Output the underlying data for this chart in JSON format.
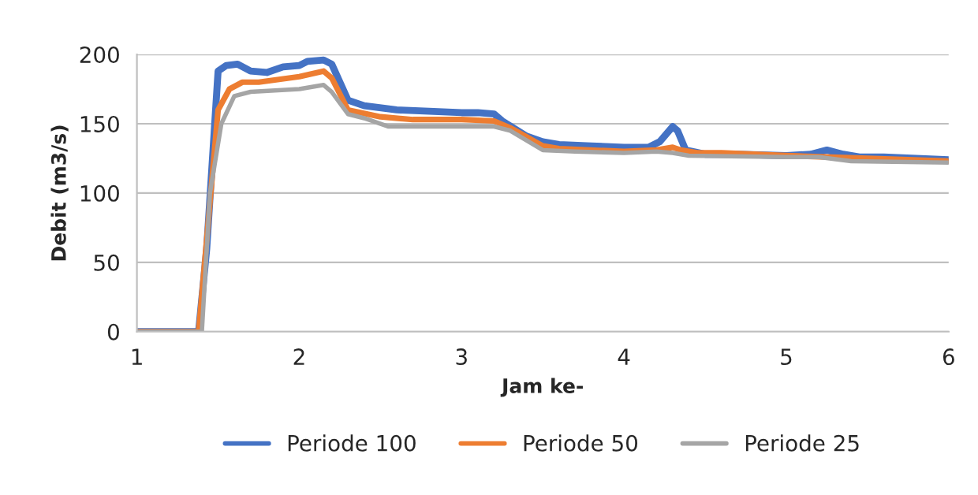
{
  "chart_data": {
    "type": "line",
    "xlabel": "Jam ke-",
    "ylabel": "Debit (m3/s)",
    "xlim": [
      1,
      6
    ],
    "xticks": [
      1,
      2,
      3,
      4,
      5,
      6
    ],
    "ylim": [
      0,
      200
    ],
    "yticks": [
      0,
      50,
      100,
      150,
      200
    ],
    "grid": "y",
    "legend": "bottom",
    "marker": "none",
    "line_style": "solid",
    "series": [
      {
        "name": "Periode 100",
        "color": "#4472c4",
        "x": [
          1,
          1.38,
          1.43,
          1.5,
          1.55,
          1.62,
          1.7,
          1.8,
          1.9,
          2,
          2.05,
          2.15,
          2.2,
          2.3,
          2.4,
          2.6,
          2.8,
          3,
          3.1,
          3.2,
          3.25,
          3.4,
          3.5,
          3.6,
          3.8,
          4,
          4.15,
          4.22,
          4.3,
          4.33,
          4.38,
          4.5,
          4.7,
          5,
          5.15,
          5.25,
          5.35,
          5.45,
          5.6,
          6
        ],
        "values": [
          0,
          0,
          60,
          188,
          192,
          193,
          188,
          187,
          191,
          192,
          195,
          196,
          193,
          167,
          163,
          160,
          159,
          158,
          158,
          157,
          152,
          141,
          137,
          135,
          134,
          133,
          133,
          137,
          148,
          145,
          131,
          128,
          128,
          127,
          128,
          131,
          128,
          126,
          126,
          124
        ]
      },
      {
        "name": "Periode 50",
        "color": "#ed7d31",
        "x": [
          1,
          1.38,
          1.44,
          1.5,
          1.57,
          1.65,
          1.75,
          2,
          2.15,
          2.2,
          2.3,
          2.5,
          2.7,
          3,
          3.2,
          3.3,
          3.5,
          3.6,
          4,
          4.2,
          4.3,
          4.35,
          4.45,
          4.6,
          5,
          5.5,
          6
        ],
        "values": [
          0,
          0,
          80,
          160,
          175,
          180,
          180,
          184,
          188,
          183,
          160,
          155,
          153,
          153,
          152,
          147,
          134,
          132,
          130,
          131,
          133,
          131,
          129,
          129,
          127,
          125,
          123
        ]
      },
      {
        "name": "Periode 25",
        "color": "#a5a5a5",
        "x": [
          1,
          1.4,
          1.45,
          1.52,
          1.6,
          1.7,
          2,
          2.15,
          2.2,
          2.3,
          2.4,
          2.55,
          3,
          3.2,
          3.3,
          3.5,
          3.7,
          4,
          4.2,
          4.3,
          4.4,
          5,
          5.2,
          5.4,
          6
        ],
        "values": [
          0,
          0,
          100,
          150,
          170,
          173,
          175,
          178,
          173,
          157,
          154,
          148,
          148,
          148,
          145,
          131,
          130,
          129,
          130,
          129,
          127,
          126,
          126,
          123,
          122
        ]
      }
    ]
  }
}
